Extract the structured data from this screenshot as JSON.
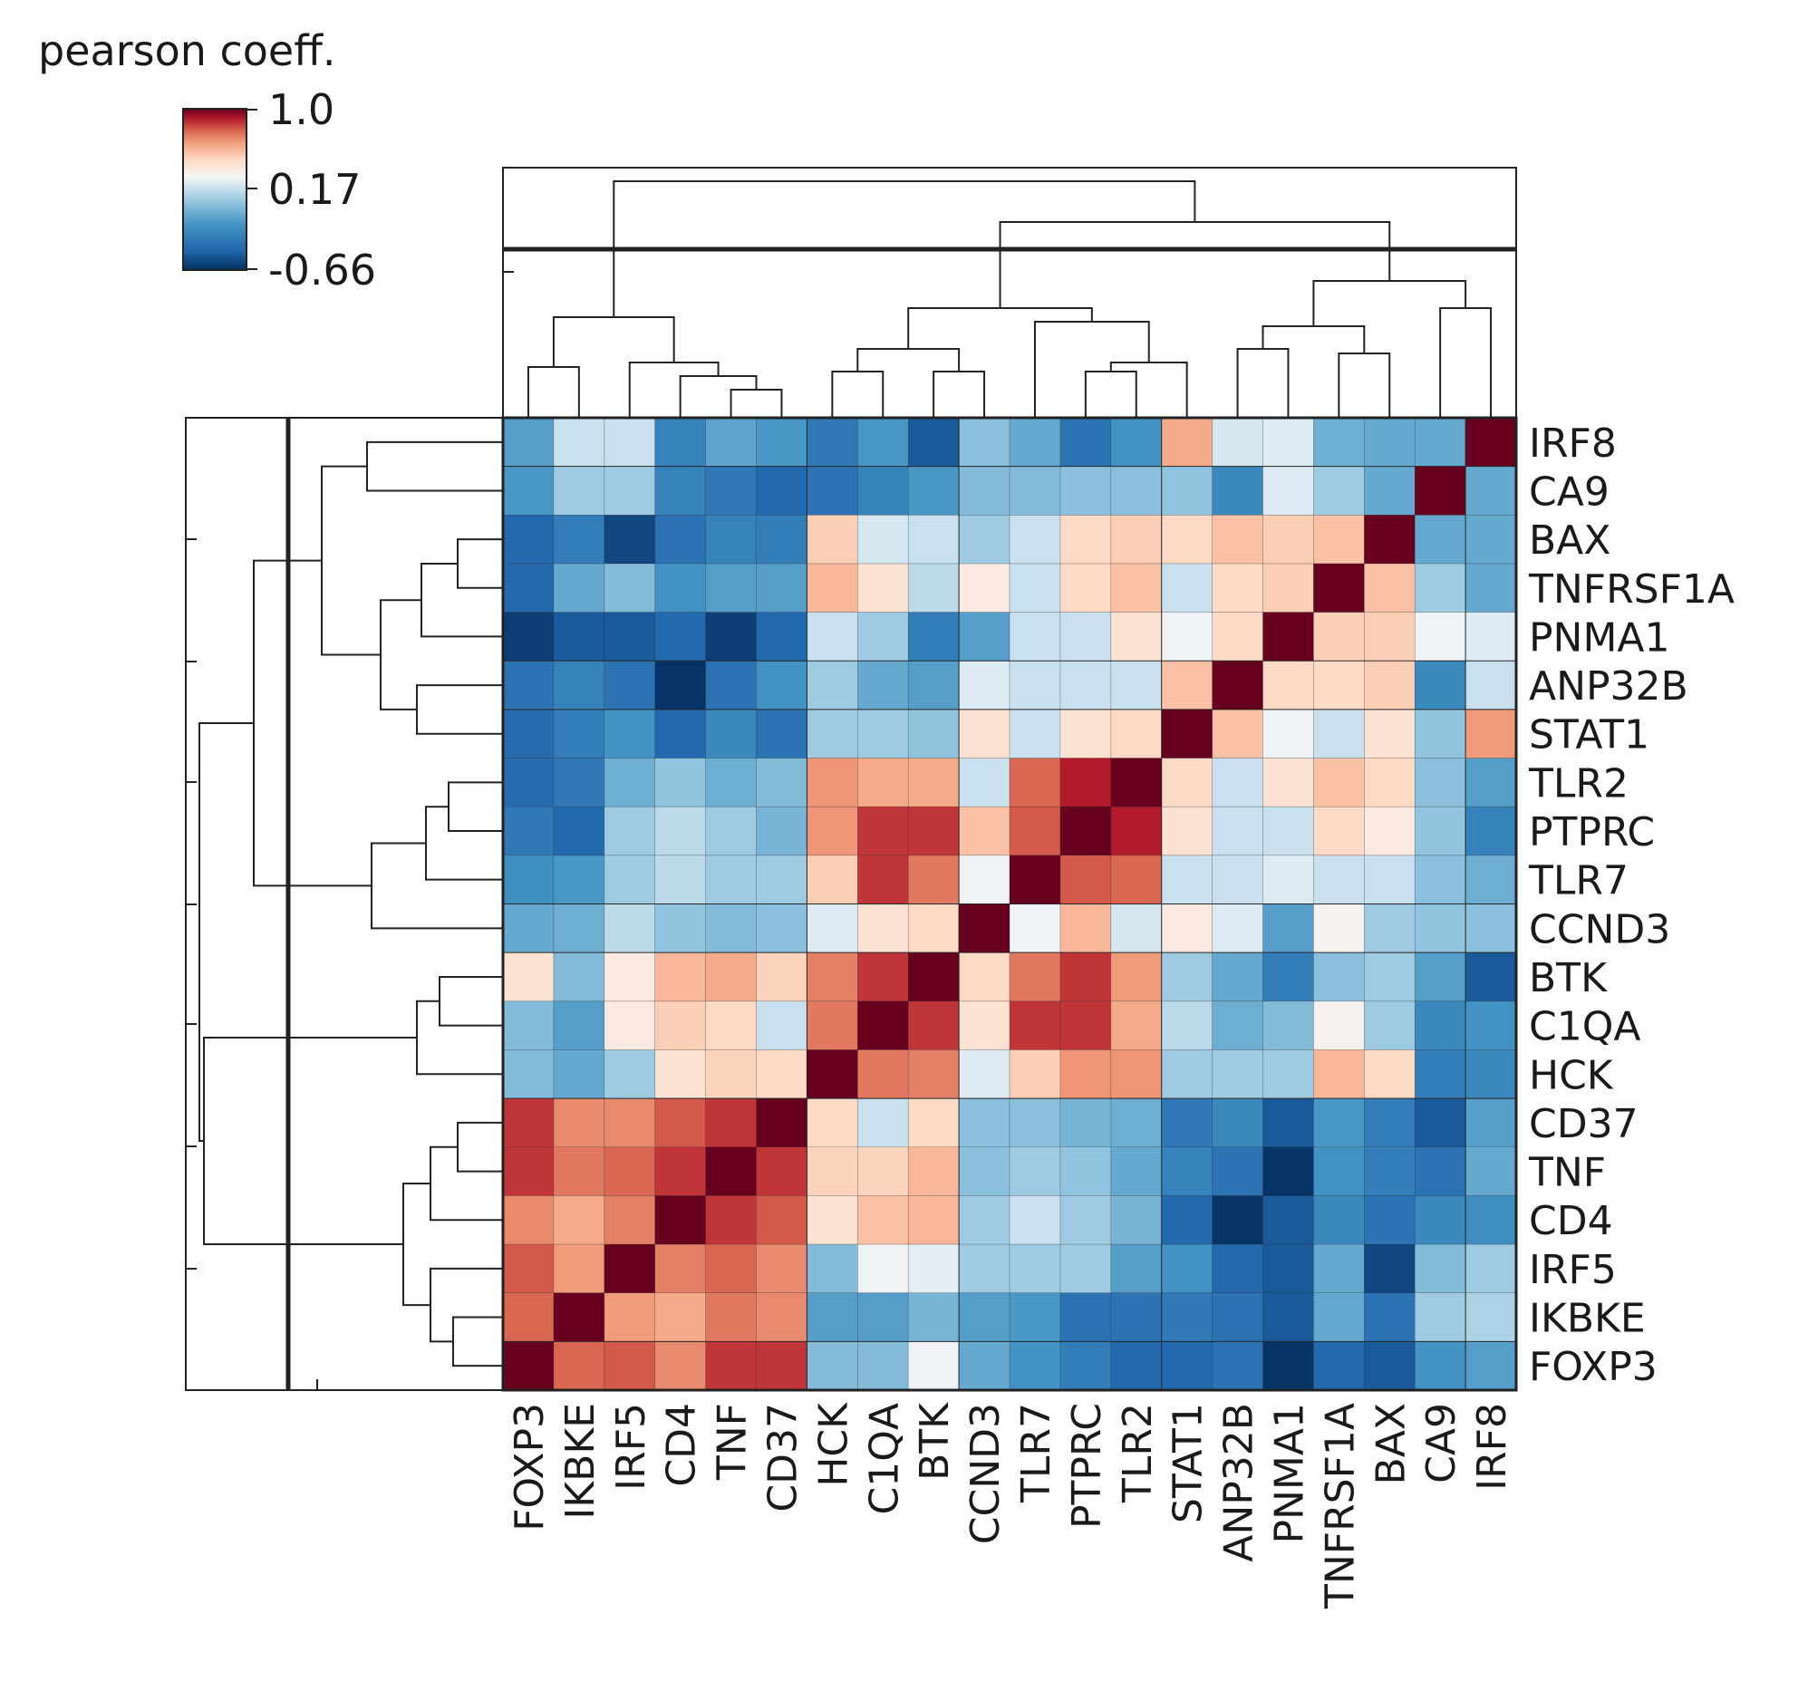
{
  "chart_data": {
    "type": "heatmap",
    "subtype": "clustered correlation matrix",
    "colorbar": {
      "title": "pearson coeff.",
      "max_label": "1.0",
      "mid_label": "0.17",
      "min_label": "-0.66",
      "max": 1.0,
      "mid": 0.17,
      "min": -0.66,
      "colors": {
        "high": "#67001f",
        "mid": "#f7f7f7",
        "low": "#053061"
      }
    },
    "column_labels": [
      "FOXP3",
      "IKBKE",
      "IRF5",
      "CD4",
      "TNF",
      "CD37",
      "HCK",
      "C1QA",
      "BTK",
      "CCND3",
      "TLR7",
      "PTPRC",
      "TLR2",
      "STAT1",
      "ANP32B",
      "PNMA1",
      "TNFRSF1A",
      "BAX",
      "CA9",
      "IRF8"
    ],
    "row_labels": [
      "IRF8",
      "CA9",
      "BAX",
      "TNFRSF1A",
      "PNMA1",
      "ANP32B",
      "STAT1",
      "TLR2",
      "PTPRC",
      "TLR7",
      "CCND3",
      "BTK",
      "C1QA",
      "HCK",
      "CD37",
      "TNF",
      "CD4",
      "IRF5",
      "IKBKE",
      "FOXP3"
    ],
    "matrix": [
      [
        -0.25,
        0.05,
        0.05,
        -0.38,
        -0.22,
        -0.28,
        -0.42,
        -0.28,
        -0.55,
        -0.1,
        -0.2,
        -0.45,
        -0.3,
        0.55,
        0.08,
        0.1,
        -0.18,
        -0.2,
        -0.2,
        1.0
      ],
      [
        -0.28,
        -0.05,
        -0.05,
        -0.38,
        -0.42,
        -0.5,
        -0.45,
        -0.38,
        -0.28,
        -0.12,
        -0.12,
        -0.1,
        -0.1,
        -0.08,
        -0.35,
        0.1,
        -0.05,
        -0.2,
        1.0,
        -0.2
      ],
      [
        -0.5,
        -0.4,
        -0.6,
        -0.45,
        -0.38,
        -0.4,
        0.4,
        0.08,
        0.05,
        -0.05,
        0.05,
        0.35,
        0.4,
        0.35,
        0.45,
        0.4,
        0.45,
        1.0,
        -0.2,
        -0.2
      ],
      [
        -0.5,
        -0.2,
        -0.12,
        -0.3,
        -0.25,
        -0.25,
        0.5,
        0.3,
        0.02,
        0.25,
        0.05,
        0.35,
        0.45,
        0.05,
        0.35,
        0.4,
        1.0,
        0.45,
        -0.05,
        -0.2
      ],
      [
        -0.62,
        -0.55,
        -0.55,
        -0.5,
        -0.62,
        -0.5,
        0.05,
        -0.05,
        -0.4,
        -0.25,
        0.05,
        0.05,
        0.3,
        0.15,
        0.35,
        1.0,
        0.4,
        0.4,
        0.15,
        0.1
      ],
      [
        -0.45,
        -0.38,
        -0.45,
        -0.65,
        -0.45,
        -0.3,
        -0.05,
        -0.2,
        -0.25,
        0.1,
        0.05,
        0.05,
        0.05,
        0.45,
        1.0,
        0.35,
        0.35,
        0.4,
        -0.35,
        0.05
      ],
      [
        -0.48,
        -0.4,
        -0.3,
        -0.5,
        -0.35,
        -0.45,
        -0.05,
        -0.05,
        -0.08,
        0.3,
        0.05,
        0.3,
        0.35,
        1.0,
        0.45,
        0.15,
        0.05,
        0.3,
        -0.08,
        0.6
      ],
      [
        -0.48,
        -0.42,
        -0.18,
        -0.08,
        -0.18,
        -0.12,
        0.62,
        0.55,
        0.55,
        0.05,
        0.75,
        0.9,
        1.0,
        0.35,
        0.05,
        0.3,
        0.45,
        0.35,
        -0.1,
        -0.25
      ],
      [
        -0.42,
        -0.5,
        -0.05,
        0.02,
        -0.05,
        -0.15,
        0.62,
        0.85,
        0.85,
        0.45,
        0.78,
        1.0,
        0.9,
        0.3,
        0.05,
        0.05,
        0.35,
        0.25,
        -0.08,
        -0.38
      ],
      [
        -0.32,
        -0.28,
        -0.05,
        0.02,
        -0.05,
        -0.05,
        0.4,
        0.85,
        0.7,
        0.15,
        1.0,
        0.78,
        0.75,
        0.05,
        0.05,
        0.1,
        0.05,
        0.05,
        -0.1,
        -0.18
      ],
      [
        -0.2,
        -0.18,
        0.02,
        -0.08,
        -0.12,
        -0.1,
        0.1,
        0.3,
        0.35,
        1.0,
        0.15,
        0.5,
        0.08,
        0.25,
        0.1,
        -0.25,
        0.2,
        -0.05,
        -0.08,
        -0.1
      ],
      [
        0.3,
        -0.12,
        0.25,
        0.5,
        0.55,
        0.38,
        0.68,
        0.85,
        1.0,
        0.35,
        0.7,
        0.85,
        0.6,
        -0.05,
        -0.2,
        -0.4,
        -0.1,
        -0.05,
        -0.25,
        -0.55
      ],
      [
        -0.12,
        -0.25,
        0.25,
        0.4,
        0.35,
        0.05,
        0.7,
        1.0,
        0.85,
        0.3,
        0.85,
        0.85,
        0.55,
        0.02,
        -0.18,
        -0.12,
        0.2,
        -0.05,
        -0.35,
        -0.3
      ],
      [
        -0.12,
        -0.2,
        -0.05,
        0.3,
        0.38,
        0.35,
        1.0,
        0.7,
        0.68,
        0.1,
        0.4,
        0.62,
        0.62,
        -0.05,
        -0.05,
        -0.05,
        0.5,
        0.35,
        -0.4,
        -0.35
      ],
      [
        0.85,
        0.65,
        0.65,
        0.78,
        0.85,
        1.0,
        0.35,
        0.05,
        0.35,
        -0.1,
        -0.1,
        -0.15,
        -0.18,
        -0.42,
        -0.35,
        -0.55,
        -0.28,
        -0.4,
        -0.55,
        -0.25
      ],
      [
        0.85,
        0.7,
        0.75,
        0.85,
        1.0,
        0.85,
        0.38,
        0.38,
        0.5,
        -0.1,
        -0.05,
        -0.08,
        -0.2,
        -0.38,
        -0.45,
        -0.65,
        -0.3,
        -0.4,
        -0.45,
        -0.2
      ],
      [
        0.65,
        0.55,
        0.68,
        1.0,
        0.85,
        0.78,
        0.3,
        0.45,
        0.5,
        -0.05,
        0.05,
        -0.05,
        -0.15,
        -0.5,
        -0.65,
        -0.55,
        -0.35,
        -0.45,
        -0.35,
        -0.32
      ],
      [
        0.78,
        0.6,
        1.0,
        0.68,
        0.75,
        0.65,
        -0.12,
        0.15,
        0.12,
        -0.05,
        -0.05,
        -0.05,
        -0.25,
        -0.3,
        -0.5,
        -0.55,
        -0.2,
        -0.6,
        -0.12,
        -0.05
      ],
      [
        0.75,
        1.0,
        0.6,
        0.55,
        0.7,
        0.65,
        -0.25,
        -0.25,
        -0.15,
        -0.25,
        -0.28,
        -0.45,
        -0.45,
        -0.42,
        -0.45,
        -0.55,
        -0.2,
        -0.45,
        -0.05,
        -0.02
      ],
      [
        1.0,
        0.75,
        0.78,
        0.65,
        0.85,
        0.85,
        -0.12,
        -0.12,
        0.15,
        -0.2,
        -0.3,
        -0.4,
        -0.5,
        -0.5,
        -0.45,
        -0.65,
        -0.5,
        -0.55,
        -0.3,
        -0.25
      ]
    ]
  }
}
